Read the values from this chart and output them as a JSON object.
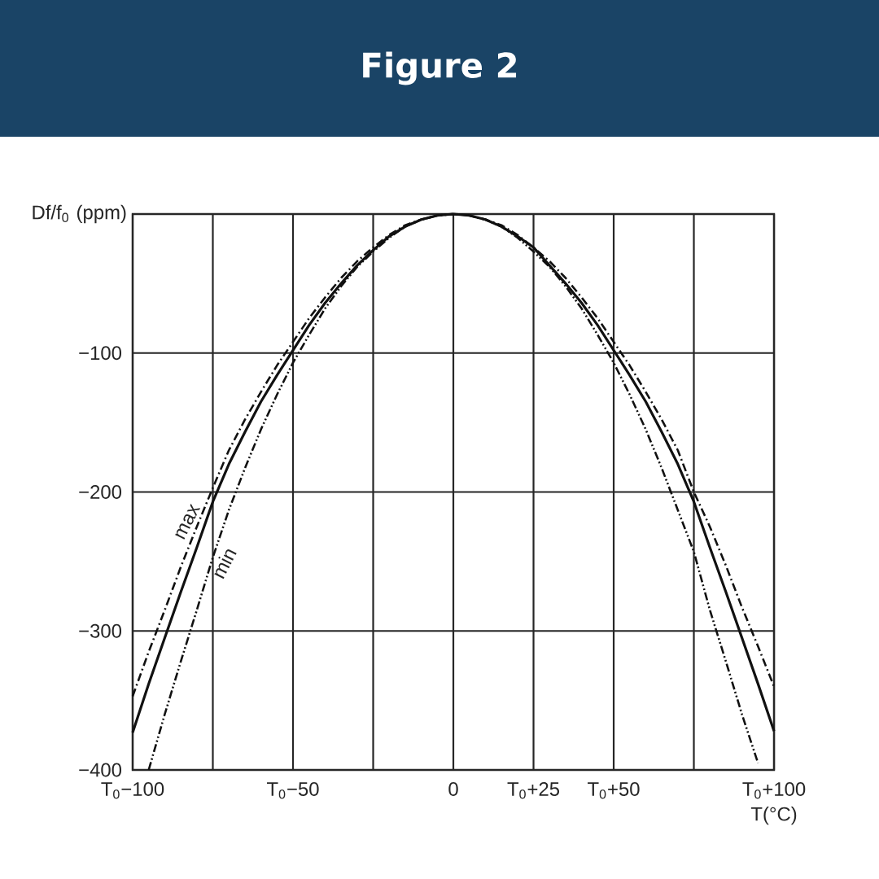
{
  "chart_data": {
    "type": "line",
    "title": "Figure 2",
    "xlabel": "T(°C)",
    "ylabel": "Df/f$_{0}$ (ppm)",
    "categories": [
      "T$_{0}$−100",
      null,
      null,
      null,
      null,
      null,
      null,
      null,
      null,
      null,
      "T$_{0}$−50",
      null,
      null,
      null,
      null,
      null,
      null,
      null,
      null,
      null,
      "0",
      null,
      null,
      null,
      null,
      "T$_{0}$+25",
      null,
      null,
      null,
      null,
      "T$_{0}$+50",
      null,
      null,
      null,
      null,
      null,
      null,
      null,
      null,
      null,
      "T$_{0}$+100"
    ],
    "ylim": [
      -400,
      0
    ],
    "yticks": [
      {
        "value": -400,
        "label": "−400"
      },
      {
        "value": -300,
        "label": "−300"
      },
      {
        "value": -200,
        "label": "−200"
      },
      {
        "value": -100,
        "label": "−100"
      }
    ],
    "grid": true,
    "series": [
      {
        "color": "#111111",
        "line_style": "solid",
        "values": [
          -373,
          -338,
          -305,
          -272,
          -240,
          -207,
          -180,
          -157,
          -135,
          -116,
          -98,
          -80,
          -64,
          -50,
          -37,
          -26,
          -16,
          -9,
          -4,
          -1,
          0,
          -1,
          -4,
          -9,
          -16,
          -24,
          -37,
          -50,
          -64,
          -80,
          -98,
          -116,
          -135,
          -157,
          -180,
          -207,
          -240,
          -272,
          -305,
          -338,
          -372
        ]
      },
      {
        "name": "max",
        "color": "#111111",
        "line_style": "dashdotted",
        "values": [
          -347,
          -315,
          -285,
          -254,
          -225,
          -197,
          -170,
          -148,
          -128,
          -109,
          -92,
          -75,
          -60,
          -46,
          -34,
          -24,
          -15,
          -8,
          -4,
          -1,
          0,
          -1,
          -4,
          -8,
          -15,
          -24,
          -34,
          -46,
          -60,
          -75,
          -92,
          -109,
          -128,
          -148,
          -170,
          -200,
          -225,
          -253,
          -283,
          -311,
          -340
        ]
      },
      {
        "name": "min",
        "color": "#111111",
        "line_style": "dashdotdotted",
        "values": [
          null,
          -400,
          -360,
          -322,
          -285,
          -247,
          -213,
          -183,
          -155,
          -130,
          -107,
          -87,
          -68,
          -52,
          -38,
          -27,
          -17,
          -9,
          -4,
          -1,
          0,
          -1,
          -4,
          -9,
          -17,
          -27,
          -38,
          -52,
          -68,
          -87,
          -107,
          -130,
          -155,
          -183,
          -213,
          -243,
          -285,
          -322,
          -360,
          -395,
          null
        ]
      }
    ]
  }
}
